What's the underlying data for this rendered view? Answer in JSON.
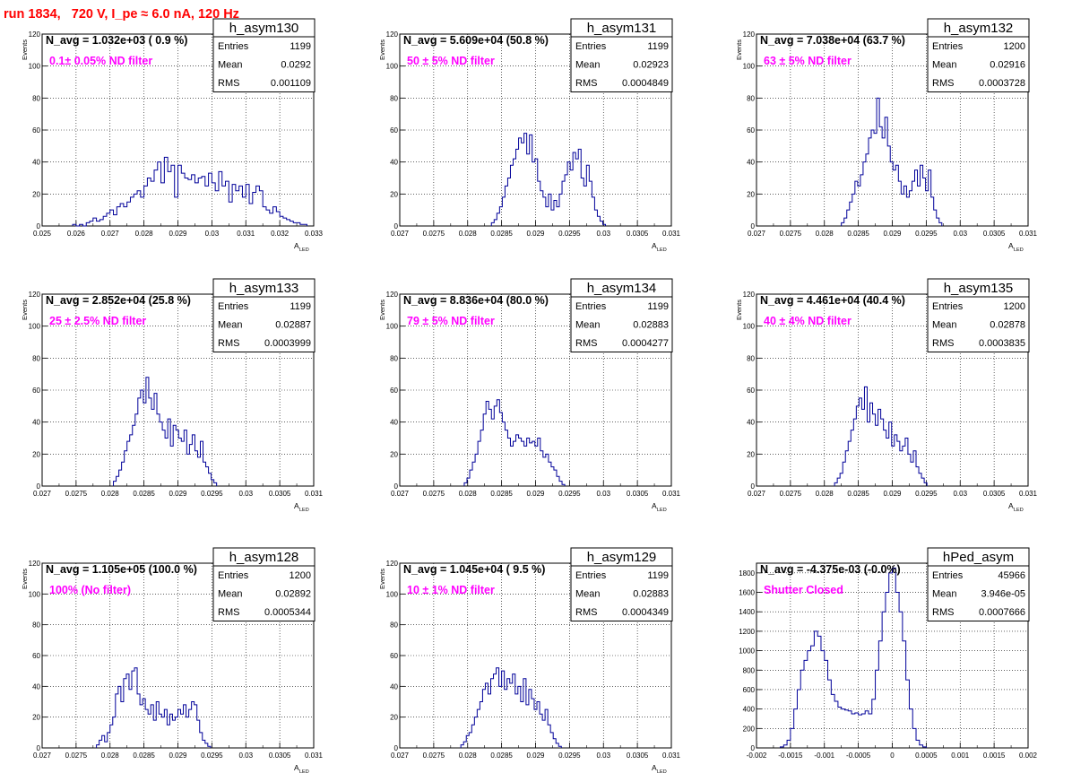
{
  "page_title": "run 1834,   720 V, I_pe ≈ 6.0 nA, 120 Hz",
  "chart_data": [
    {
      "type": "histogram",
      "name": "h_asym130",
      "navg": "N_avg = 1.032e+03 ( 0.9 %)",
      "filter": "0.1± 0.05% ND filter",
      "xlabel": "A",
      "xlabel_sub": "LED",
      "ylabel": "Events",
      "xlim": [
        0.025,
        0.033
      ],
      "ylim": [
        0,
        120
      ],
      "xticks": [
        "0.025",
        "0.026",
        "0.027",
        "0.028",
        "0.029",
        "0.03",
        "0.031",
        "0.032",
        "0.033"
      ],
      "yticks": [
        "0",
        "20",
        "40",
        "60",
        "80",
        "100",
        "120"
      ],
      "stats": [
        [
          "Entries",
          "1199"
        ],
        [
          "Mean",
          "0.0292"
        ],
        [
          "RMS",
          "0.001109"
        ]
      ],
      "bins_x0": 0.0259,
      "bin_width": 0.0001,
      "values": [
        1,
        0,
        1,
        0,
        2,
        3,
        5,
        3,
        4,
        6,
        8,
        10,
        7,
        12,
        14,
        12,
        15,
        18,
        20,
        22,
        18,
        25,
        30,
        28,
        35,
        40,
        27,
        43,
        34,
        38,
        18,
        38,
        33,
        30,
        29,
        32,
        27,
        30,
        31,
        25,
        33,
        27,
        22,
        34,
        25,
        28,
        15,
        26,
        22,
        25,
        18,
        26,
        14,
        21,
        25,
        22,
        12,
        10,
        8,
        12,
        9,
        6,
        5,
        4,
        3,
        2,
        2,
        1,
        1
      ]
    },
    {
      "type": "histogram",
      "name": "h_asym131",
      "navg": "N_avg = 5.609e+04 (50.8 %)",
      "filter": "50 ± 5% ND filter",
      "xlabel": "A",
      "xlabel_sub": "LED",
      "ylabel": "Events",
      "xlim": [
        0.027,
        0.031
      ],
      "ylim": [
        0,
        120
      ],
      "xticks": [
        "0.027",
        "0.0275",
        "0.028",
        "0.0285",
        "0.029",
        "0.0295",
        "0.03",
        "0.0305",
        "0.031"
      ],
      "yticks": [
        "0",
        "20",
        "40",
        "60",
        "80",
        "100",
        "120"
      ],
      "stats": [
        [
          "Entries",
          "1199"
        ],
        [
          "Mean",
          "0.02923"
        ],
        [
          "RMS",
          "0.0004849"
        ]
      ],
      "bins_x0": 0.02835,
      "bin_width": 4e-05,
      "values": [
        2,
        4,
        8,
        12,
        18,
        25,
        30,
        38,
        42,
        48,
        55,
        52,
        58,
        45,
        57,
        40,
        42,
        28,
        22,
        18,
        12,
        20,
        10,
        16,
        12,
        20,
        28,
        32,
        40,
        35,
        46,
        42,
        48,
        30,
        25,
        38,
        28,
        18,
        10,
        6,
        3,
        1
      ]
    },
    {
      "type": "histogram",
      "name": "h_asym132",
      "navg": "N_avg = 7.038e+04 (63.7 %)",
      "filter": "63 ± 5% ND filter",
      "xlabel": "A",
      "xlabel_sub": "LED",
      "ylabel": "Events",
      "xlim": [
        0.027,
        0.031
      ],
      "ylim": [
        0,
        120
      ],
      "xticks": [
        "0.027",
        "0.0275",
        "0.028",
        "0.0285",
        "0.029",
        "0.0295",
        "0.03",
        "0.0305",
        "0.031"
      ],
      "yticks": [
        "0",
        "20",
        "40",
        "60",
        "80",
        "100",
        "120"
      ],
      "stats": [
        [
          "Entries",
          "1200"
        ],
        [
          "Mean",
          "0.02916"
        ],
        [
          "RMS",
          "0.0003728"
        ]
      ],
      "bins_x0": 0.02825,
      "bin_width": 4e-05,
      "values": [
        2,
        5,
        10,
        15,
        20,
        28,
        25,
        32,
        40,
        45,
        55,
        60,
        58,
        80,
        62,
        55,
        68,
        50,
        40,
        35,
        38,
        28,
        20,
        25,
        18,
        22,
        28,
        35,
        25,
        38,
        30,
        22,
        35,
        18,
        10,
        5,
        2
      ]
    },
    {
      "type": "histogram",
      "name": "h_asym133",
      "navg": "N_avg = 2.852e+04 (25.8 %)",
      "filter": "25 ± 2.5% ND filter",
      "xlabel": "A",
      "xlabel_sub": "LED",
      "ylabel": "Events",
      "xlim": [
        0.027,
        0.031
      ],
      "ylim": [
        0,
        120
      ],
      "xticks": [
        "0.027",
        "0.0275",
        "0.028",
        "0.0285",
        "0.029",
        "0.0295",
        "0.03",
        "0.0305",
        "0.031"
      ],
      "yticks": [
        "0",
        "20",
        "40",
        "60",
        "80",
        "100",
        "120"
      ],
      "stats": [
        [
          "Entries",
          "1199"
        ],
        [
          "Mean",
          "0.02887"
        ],
        [
          "RMS",
          "0.0003999"
        ]
      ],
      "bins_x0": 0.02805,
      "bin_width": 4e-05,
      "values": [
        3,
        6,
        10,
        15,
        22,
        28,
        32,
        38,
        45,
        55,
        60,
        52,
        68,
        55,
        48,
        58,
        45,
        40,
        35,
        30,
        42,
        25,
        38,
        35,
        30,
        28,
        35,
        20,
        26,
        32,
        22,
        18,
        28,
        15,
        12,
        8,
        4,
        2
      ]
    },
    {
      "type": "histogram",
      "name": "h_asym134",
      "navg": "N_avg = 8.836e+04 (80.0 %)",
      "filter": "79 ± 5% ND filter",
      "xlabel": "A",
      "xlabel_sub": "LED",
      "ylabel": "Events",
      "xlim": [
        0.027,
        0.031
      ],
      "ylim": [
        0,
        120
      ],
      "xticks": [
        "0.027",
        "0.0275",
        "0.028",
        "0.0285",
        "0.029",
        "0.0295",
        "0.03",
        "0.0305",
        "0.031"
      ],
      "yticks": [
        "0",
        "20",
        "40",
        "60",
        "80",
        "100",
        "120"
      ],
      "stats": [
        [
          "Entries",
          "1199"
        ],
        [
          "Mean",
          "0.02883"
        ],
        [
          "RMS",
          "0.0004277"
        ]
      ],
      "bins_x0": 0.02795,
      "bin_width": 4e-05,
      "values": [
        2,
        5,
        10,
        15,
        20,
        28,
        35,
        45,
        53,
        48,
        42,
        50,
        54,
        46,
        40,
        35,
        30,
        25,
        28,
        32,
        30,
        28,
        25,
        30,
        27,
        28,
        25,
        30,
        22,
        18,
        20,
        15,
        12,
        10,
        6,
        3,
        1
      ]
    },
    {
      "type": "histogram",
      "name": "h_asym135",
      "navg": "N_avg = 4.461e+04 (40.4 %)",
      "filter": "40 ± 4% ND filter",
      "xlabel": "A",
      "xlabel_sub": "LED",
      "ylabel": "Events",
      "xlim": [
        0.027,
        0.031
      ],
      "ylim": [
        0,
        120
      ],
      "xticks": [
        "0.027",
        "0.0275",
        "0.028",
        "0.0285",
        "0.029",
        "0.0295",
        "0.03",
        "0.0305",
        "0.031"
      ],
      "yticks": [
        "0",
        "20",
        "40",
        "60",
        "80",
        "100",
        "120"
      ],
      "stats": [
        [
          "Entries",
          "1200"
        ],
        [
          "Mean",
          "0.02878"
        ],
        [
          "RMS",
          "0.0003835"
        ]
      ],
      "bins_x0": 0.02815,
      "bin_width": 4e-05,
      "values": [
        2,
        5,
        8,
        15,
        22,
        28,
        35,
        42,
        50,
        55,
        48,
        62,
        40,
        52,
        45,
        38,
        48,
        42,
        35,
        30,
        40,
        25,
        32,
        28,
        22,
        25,
        30,
        20,
        15,
        22,
        12,
        8,
        5,
        2
      ]
    },
    {
      "type": "histogram",
      "name": "h_asym128",
      "navg": "N_avg = 1.105e+05 (100.0 %)",
      "filter": "100% (No filter)",
      "xlabel": "A",
      "xlabel_sub": "LED",
      "ylabel": "Events",
      "xlim": [
        0.027,
        0.031
      ],
      "ylim": [
        0,
        120
      ],
      "xticks": [
        "0.027",
        "0.0275",
        "0.028",
        "0.0285",
        "0.029",
        "0.0295",
        "0.03",
        "0.0305",
        "0.031"
      ],
      "yticks": [
        "0",
        "20",
        "40",
        "60",
        "80",
        "100",
        "120"
      ],
      "stats": [
        [
          "Entries",
          "1200"
        ],
        [
          "Mean",
          "0.02892"
        ],
        [
          "RMS",
          "0.0005344"
        ]
      ],
      "bins_x0": 0.0278,
      "bin_width": 4e-05,
      "values": [
        2,
        5,
        8,
        4,
        10,
        15,
        20,
        35,
        40,
        30,
        45,
        48,
        38,
        50,
        52,
        35,
        28,
        32,
        25,
        22,
        28,
        18,
        30,
        22,
        20,
        25,
        15,
        22,
        18,
        20,
        25,
        22,
        28,
        20,
        25,
        30,
        28,
        18,
        10,
        5,
        3,
        1
      ]
    },
    {
      "type": "histogram",
      "name": "h_asym129",
      "navg": "N_avg = 1.045e+04 ( 9.5 %)",
      "filter": "10 ± 1% ND filter",
      "xlabel": "A",
      "xlabel_sub": "LED",
      "ylabel": "Events",
      "xlim": [
        0.027,
        0.031
      ],
      "ylim": [
        0,
        120
      ],
      "xticks": [
        "0.027",
        "0.0275",
        "0.028",
        "0.0285",
        "0.029",
        "0.0295",
        "0.03",
        "0.0305",
        "0.031"
      ],
      "yticks": [
        "0",
        "20",
        "40",
        "60",
        "80",
        "100",
        "120"
      ],
      "stats": [
        [
          "Entries",
          "1199"
        ],
        [
          "Mean",
          "0.02883"
        ],
        [
          "RMS",
          "0.0004349"
        ]
      ],
      "bins_x0": 0.0279,
      "bin_width": 4e-05,
      "values": [
        2,
        4,
        8,
        10,
        15,
        20,
        25,
        30,
        38,
        42,
        35,
        45,
        48,
        52,
        40,
        50,
        38,
        45,
        42,
        48,
        35,
        40,
        30,
        45,
        28,
        38,
        32,
        25,
        30,
        22,
        18,
        25,
        15,
        10,
        6,
        3,
        1
      ]
    },
    {
      "type": "histogram",
      "name": "hPed_asym",
      "navg": "N_avg = -4.375e-03 (-0.0%)",
      "filter": "Shutter Closed",
      "xlabel": "",
      "xlabel_sub": "",
      "ylabel": "",
      "xlim": [
        -0.002,
        0.002
      ],
      "ylim": [
        0,
        1900
      ],
      "xticks": [
        "-0.002",
        "-0.0015",
        "-0.001",
        "-0.0005",
        "0",
        "0.0005",
        "0.001",
        "0.0015",
        "0.002"
      ],
      "yticks": [
        "0",
        "200",
        "400",
        "600",
        "800",
        "1000",
        "1200",
        "1400",
        "1600",
        "1800"
      ],
      "stats": [
        [
          "Entries",
          "45966"
        ],
        [
          "Mean",
          "3.946e-05"
        ],
        [
          "RMS",
          "0.0007666"
        ]
      ],
      "bins_x0": -0.00165,
      "bin_width": 5e-05,
      "values": [
        10,
        30,
        80,
        200,
        400,
        600,
        800,
        900,
        1000,
        1050,
        1200,
        1150,
        1000,
        900,
        700,
        550,
        480,
        420,
        400,
        390,
        380,
        350,
        360,
        340,
        350,
        380,
        350,
        500,
        800,
        1100,
        1400,
        1600,
        1800,
        1850,
        1600,
        1400,
        1100,
        700,
        400,
        200,
        80,
        30,
        10
      ]
    }
  ]
}
